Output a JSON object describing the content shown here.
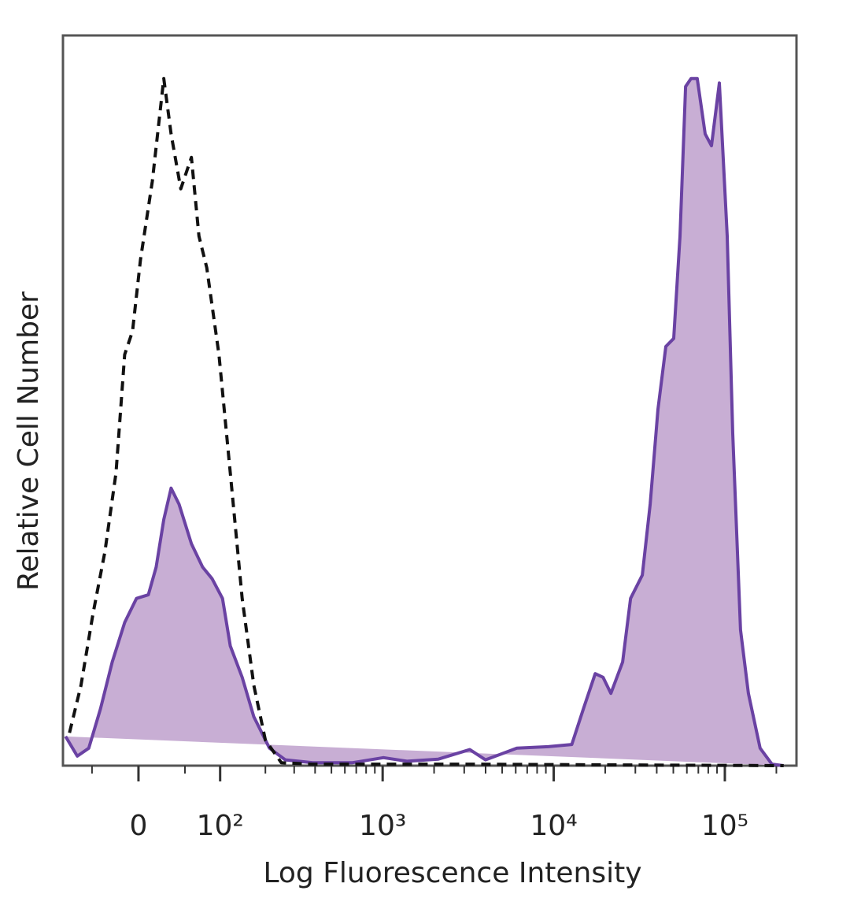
{
  "chart_data": {
    "type": "histogram-overlay",
    "x_label": "Log Fluorescence Intensity",
    "y_label": "Relative Cell Number",
    "xscale": "biexponential",
    "xlim": [
      -90,
      262144
    ],
    "ylim": [
      0,
      100
    ],
    "xticks": [
      {
        "value": 0,
        "label": "0"
      },
      {
        "value": 100,
        "label": "10²"
      },
      {
        "value": 1000,
        "label": "10³"
      },
      {
        "value": 10000,
        "label": "10⁴"
      },
      {
        "value": 100000,
        "label": "10⁵"
      }
    ],
    "xminor_ticks": [
      -50,
      50,
      200,
      300,
      400,
      500,
      600,
      700,
      800,
      900,
      2000,
      3000,
      4000,
      5000,
      6000,
      7000,
      8000,
      9000,
      20000,
      30000,
      40000,
      50000,
      60000,
      70000,
      80000,
      90000,
      200000
    ],
    "series": [
      {
        "color": "#6a42a3",
        "fill": "#c8aed4",
        "linestyle": "solid",
        "x": [
          -86,
          -69,
          -54,
          -40,
          -27,
          -14,
          -2,
          10,
          18,
          26,
          34,
          43,
          58,
          73,
          87,
          104,
          118,
          142,
          169,
          212,
          265,
          387,
          661,
          1011,
          1388,
          2118,
          3232,
          3990,
          6090,
          9285,
          12750,
          14925,
          17480,
          19425,
          21600,
          25275,
          28125,
          32925,
          36600,
          40650,
          45225,
          50250,
          54675,
          58950,
          63450,
          69000,
          76725,
          83550,
          92850,
          103200,
          111150,
          123450,
          137250,
          160725,
          188400,
          220650
        ],
        "values": [
          4.0,
          1.3,
          2.4,
          7.8,
          14.2,
          19.6,
          22.9,
          23.4,
          27.2,
          33.7,
          38.0,
          35.8,
          30.4,
          27.2,
          25.6,
          22.9,
          16.4,
          12.1,
          6.7,
          2.4,
          0.8,
          0.4,
          0.4,
          1.1,
          0.6,
          0.9,
          2.2,
          0.8,
          2.4,
          2.6,
          2.9,
          7.8,
          12.6,
          12.1,
          9.9,
          14.2,
          22.9,
          26.1,
          35.8,
          48.8,
          57.4,
          58.5,
          72.5,
          93.0,
          94.1,
          94.1,
          86.5,
          84.9,
          93.5,
          72.5,
          45.5,
          18.6,
          9.9,
          2.4,
          0.2,
          0
        ]
      },
      {
        "color": "#111111",
        "fill": "none",
        "linestyle": "dashed",
        "x": [
          -80,
          -64,
          -49,
          -35,
          -23,
          -14,
          -6,
          2,
          14,
          26,
          34,
          45,
          58,
          68,
          79,
          98,
          118,
          142,
          169,
          200,
          251,
          387,
          3232,
          26625,
          220650
        ],
        "values": [
          4.5,
          11.0,
          20.7,
          29.3,
          40.1,
          56.3,
          59.5,
          69.3,
          80.0,
          94.1,
          86.5,
          79.0,
          83.3,
          72.5,
          68.2,
          56.3,
          40.1,
          22.9,
          11.0,
          3.5,
          0.4,
          0.2,
          0.2,
          0.1,
          0
        ]
      }
    ]
  }
}
